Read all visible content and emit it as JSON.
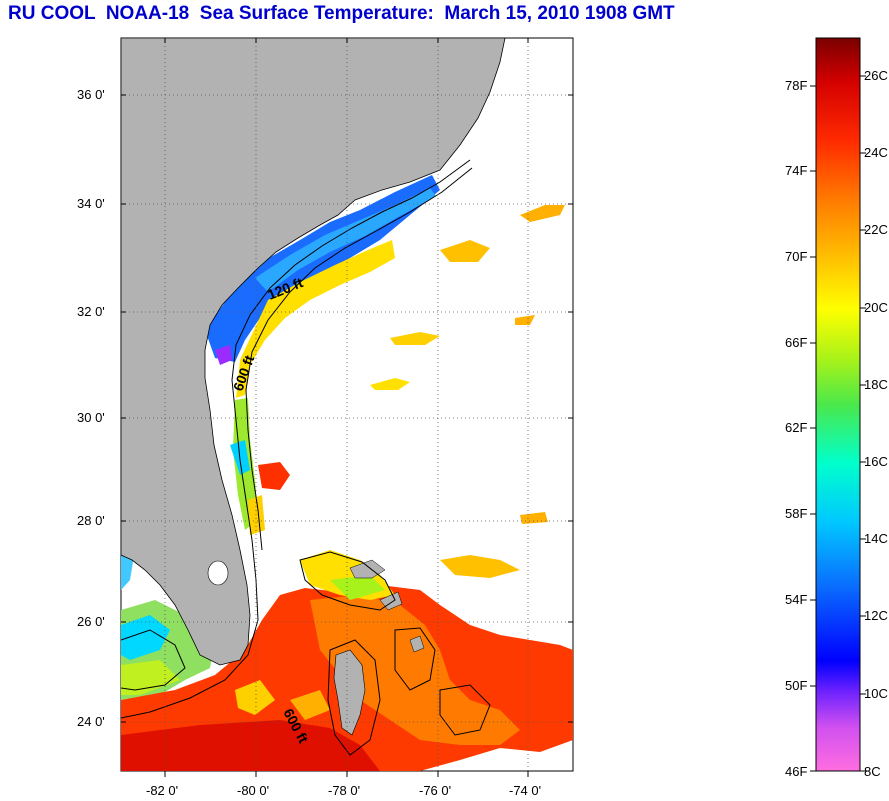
{
  "title": "RU COOL  NOAA-18  Sea Surface Temperature:  March 15, 2010 1908 GMT",
  "map": {
    "lat_labels": [
      "36 0'",
      "34 0'",
      "32 0'",
      "30 0'",
      "28 0'",
      "26 0'",
      "24 0'"
    ],
    "lon_labels": [
      "-82 0'",
      "-80 0'",
      "-78 0'",
      "-76 0'",
      "-74 0'"
    ],
    "contour_labels": [
      "120 ft",
      "600 ft",
      "600 ft"
    ],
    "colors": {
      "land": "#b2b2b2",
      "ocean": "#ffffff"
    }
  },
  "colorbar": {
    "fahrenheit_labels": [
      "78F",
      "74F",
      "70F",
      "66F",
      "62F",
      "58F",
      "54F",
      "50F",
      "46F"
    ],
    "celsius_labels": [
      "26C",
      "24C",
      "22C",
      "20C",
      "18C",
      "16C",
      "14C",
      "12C",
      "10C",
      "8C"
    ],
    "stops": [
      "#ff6ee0",
      "#9b2bff",
      "#0000ff",
      "#0a6bff",
      "#00c8ff",
      "#00ffcc",
      "#4be84b",
      "#a6f21a",
      "#ffff00",
      "#ffb000",
      "#ff7a00",
      "#ff2a00",
      "#d40000",
      "#7a0000"
    ]
  }
}
